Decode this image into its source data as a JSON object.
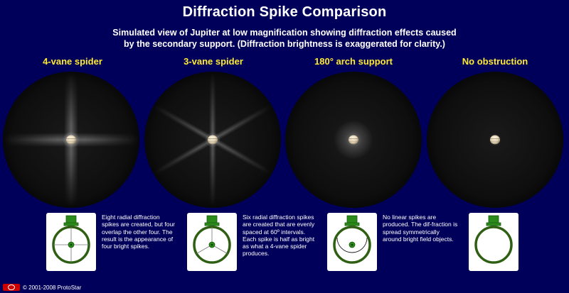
{
  "title": "Diffraction Spike Comparison",
  "subtitle_line1": "Simulated view of Jupiter at low magnification showing diffraction effects caused",
  "subtitle_line2": "by the secondary support.  (Diffraction brightness is exaggerated for clarity.)",
  "columns": [
    {
      "label": "4-vane spider",
      "description": "Eight radial diffraction spikes are created, but four overlap the other four. The result is the appearance of four bright spikes."
    },
    {
      "label": "3-vane spider",
      "description": "Six radial diffraction spikes are created that are evenly spaced at 60º intervals. Each spike is half as bright as what a 4-vane spider produces."
    },
    {
      "label": "180° arch support",
      "description": "No linear spikes are produced. The dif-fraction is spread symmetrically around bright field objects."
    },
    {
      "label": "No obstruction",
      "description": ""
    }
  ],
  "footer": {
    "copyright": "© 2001-2008 ProtoStar"
  },
  "colors": {
    "background": "#00005a",
    "label_yellow": "#ffea33",
    "support_green": "#2e5f12"
  }
}
